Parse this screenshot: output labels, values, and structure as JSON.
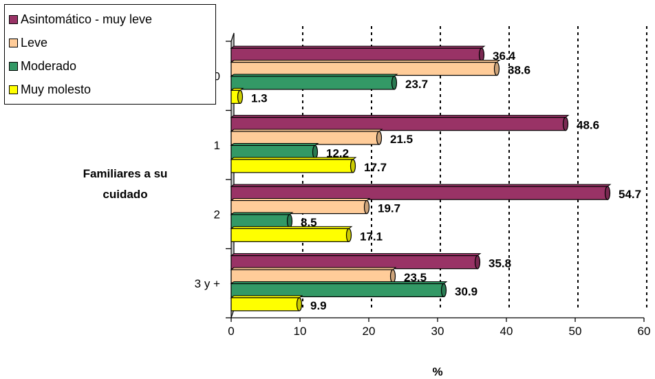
{
  "chart_data": {
    "type": "bar",
    "orientation": "horizontal",
    "categories": [
      "0",
      "1",
      "2",
      "3 y +"
    ],
    "series": [
      {
        "name": "Asintomático - muy leve",
        "color": "#993366",
        "values": [
          36.4,
          48.6,
          54.7,
          35.8
        ]
      },
      {
        "name": "Leve",
        "color": "#FFCC99",
        "values": [
          38.6,
          21.5,
          19.7,
          23.5
        ]
      },
      {
        "name": "Moderado",
        "color": "#339966",
        "values": [
          23.7,
          12.2,
          8.5,
          30.9
        ]
      },
      {
        "name": "Muy molesto",
        "color": "#FFFF00",
        "values": [
          1.3,
          17.7,
          17.1,
          9.9
        ]
      }
    ],
    "data_labels": [
      [
        "36.4",
        "38.6",
        "23.7",
        "1.3"
      ],
      [
        "48.6",
        "21.5",
        "12.2",
        "17.7"
      ],
      [
        "54.7",
        "19.7",
        "8.5",
        "17.1"
      ],
      [
        "35.8",
        "23.5",
        "30.9",
        "9.9"
      ]
    ],
    "x_ticks": [
      "0",
      "10",
      "20",
      "30",
      "40",
      "50",
      "60"
    ],
    "xlim": [
      0,
      60
    ],
    "xlabel": "%",
    "ylabel": "Familiares a su cuidado",
    "ylabel_lines": [
      "Familiares a su",
      "cuidado"
    ],
    "grid": "vertical dotted",
    "legend_position": "top-left",
    "style": "3d"
  }
}
